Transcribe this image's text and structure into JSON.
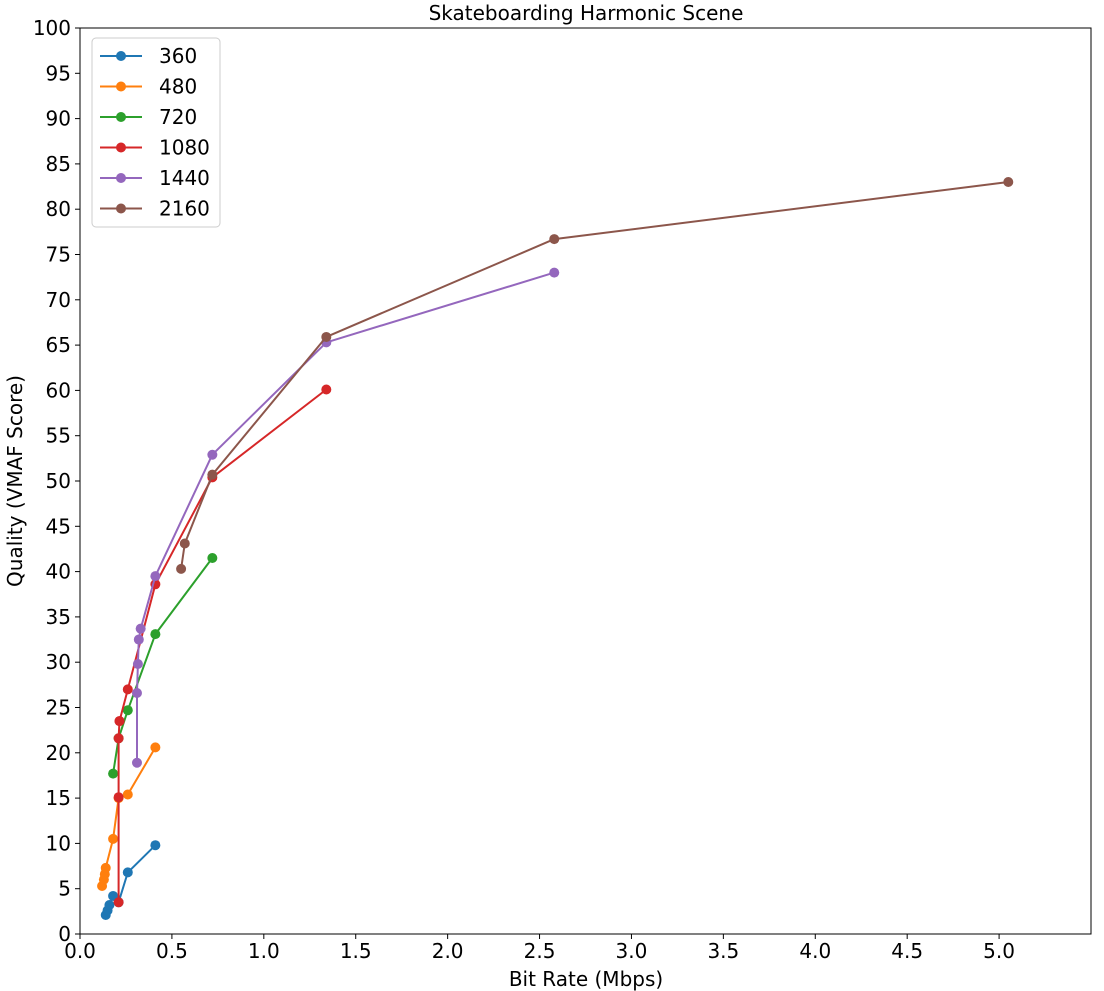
{
  "chart_data": {
    "type": "line",
    "title": "Skateboarding Harmonic Scene",
    "xlabel": "Bit Rate (Mbps)",
    "ylabel": "Quality (VMAF Score)",
    "xlim": [
      0,
      5.5
    ],
    "ylim": [
      0,
      100
    ],
    "xticks": [
      "0.0",
      "0.5",
      "1.0",
      "1.5",
      "2.0",
      "2.5",
      "3.0",
      "3.5",
      "4.0",
      "4.5",
      "5.0"
    ],
    "xtick_values": [
      0,
      0.5,
      1.0,
      1.5,
      2.0,
      2.5,
      3.0,
      3.5,
      4.0,
      4.5,
      5.0
    ],
    "yticks": [
      "0",
      "5",
      "10",
      "15",
      "20",
      "25",
      "30",
      "35",
      "40",
      "45",
      "50",
      "55",
      "60",
      "65",
      "70",
      "75",
      "80",
      "85",
      "90",
      "95",
      "100"
    ],
    "ytick_values": [
      0,
      5,
      10,
      15,
      20,
      25,
      30,
      35,
      40,
      45,
      50,
      55,
      60,
      65,
      70,
      75,
      80,
      85,
      90,
      95,
      100
    ],
    "legend_position": "top-left",
    "grid": false,
    "series": [
      {
        "name": "360",
        "color": "#1f77b4",
        "x": [
          0.14,
          0.15,
          0.16,
          0.18,
          0.21,
          0.26,
          0.41
        ],
        "y": [
          2.1,
          2.6,
          3.2,
          4.2,
          3.5,
          6.8,
          9.8
        ]
      },
      {
        "name": "480",
        "color": "#ff7f0e",
        "x": [
          0.12,
          0.13,
          0.135,
          0.14,
          0.18,
          0.21,
          0.26,
          0.41
        ],
        "y": [
          5.3,
          6.0,
          6.6,
          7.3,
          10.5,
          15.0,
          15.4,
          20.6
        ]
      },
      {
        "name": "720",
        "color": "#2ca02c",
        "x": [
          0.18,
          0.21,
          0.26,
          0.41,
          0.72
        ],
        "y": [
          17.7,
          21.6,
          24.7,
          33.1,
          41.5
        ]
      },
      {
        "name": "1080",
        "color": "#d62728",
        "x": [
          0.21,
          0.21,
          0.21,
          0.215,
          0.215,
          0.26,
          0.41,
          0.72,
          1.34
        ],
        "y": [
          3.5,
          15.1,
          21.6,
          23.5,
          23.5,
          27.0,
          38.6,
          50.4,
          60.1
        ]
      },
      {
        "name": "1440",
        "color": "#9467bd",
        "x": [
          0.31,
          0.31,
          0.315,
          0.32,
          0.33,
          0.41,
          0.72,
          1.34,
          2.58
        ],
        "y": [
          18.9,
          26.6,
          29.8,
          32.5,
          33.7,
          39.5,
          52.9,
          65.3,
          73.0
        ]
      },
      {
        "name": "2160",
        "color": "#8c564b",
        "x": [
          0.55,
          0.57,
          0.72,
          1.34,
          2.58,
          5.05
        ],
        "y": [
          40.3,
          43.1,
          50.7,
          65.9,
          76.7,
          83.0
        ]
      }
    ]
  }
}
